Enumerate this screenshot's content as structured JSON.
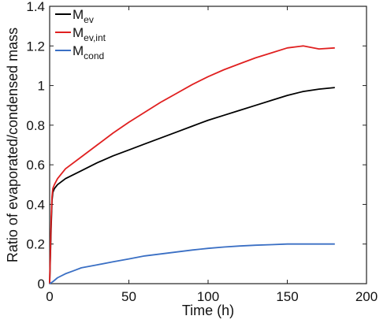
{
  "chart_data": {
    "type": "line",
    "title": "",
    "xlabel": "Time (h)",
    "ylabel": "Ratio of evaporated/condensed mass",
    "xlim": [
      0,
      200
    ],
    "ylim": [
      0,
      1.4
    ],
    "xticks": [
      0,
      50,
      100,
      150,
      200
    ],
    "yticks": [
      0,
      0.2,
      0.4,
      0.6,
      0.8,
      1,
      1.2,
      1.4
    ],
    "xtick_labels": [
      "0",
      "50",
      "100",
      "150",
      "200"
    ],
    "ytick_labels": [
      "0",
      "0.2",
      "0.4",
      "0.6",
      "0.8",
      "1",
      "1.2",
      "1.4"
    ],
    "grid": false,
    "legend_position": "top-left",
    "series": [
      {
        "name": "M_ev",
        "legend_main": "M",
        "legend_sub": "ev",
        "color": "#000000",
        "x": [
          0,
          0.5,
          1,
          1.5,
          2,
          3,
          5,
          10,
          20,
          30,
          40,
          50,
          60,
          70,
          80,
          90,
          100,
          110,
          120,
          130,
          140,
          150,
          160,
          170,
          180
        ],
        "y": [
          0,
          0.15,
          0.3,
          0.42,
          0.46,
          0.48,
          0.5,
          0.53,
          0.57,
          0.61,
          0.645,
          0.675,
          0.705,
          0.735,
          0.765,
          0.795,
          0.825,
          0.85,
          0.875,
          0.9,
          0.925,
          0.95,
          0.97,
          0.982,
          0.99
        ]
      },
      {
        "name": "M_ev,int",
        "legend_main": "M",
        "legend_sub": "ev,int",
        "color": "#e02020",
        "x": [
          0,
          0.5,
          1,
          1.5,
          2,
          3,
          5,
          10,
          20,
          30,
          40,
          50,
          60,
          70,
          80,
          90,
          100,
          110,
          120,
          130,
          140,
          150,
          160,
          170,
          180
        ],
        "y": [
          0,
          0.18,
          0.34,
          0.44,
          0.48,
          0.5,
          0.53,
          0.58,
          0.64,
          0.7,
          0.76,
          0.815,
          0.865,
          0.915,
          0.96,
          1.005,
          1.045,
          1.08,
          1.11,
          1.14,
          1.165,
          1.19,
          1.2,
          1.185,
          1.19
        ]
      },
      {
        "name": "M_cond",
        "legend_main": "M",
        "legend_sub": "cond",
        "color": "#3a6fc4",
        "x": [
          0,
          2,
          5,
          10,
          15,
          20,
          30,
          40,
          50,
          60,
          70,
          80,
          90,
          100,
          110,
          120,
          130,
          140,
          150,
          160,
          170,
          180
        ],
        "y": [
          0,
          0.01,
          0.03,
          0.05,
          0.065,
          0.08,
          0.095,
          0.11,
          0.125,
          0.14,
          0.15,
          0.16,
          0.17,
          0.178,
          0.185,
          0.19,
          0.194,
          0.197,
          0.2,
          0.2,
          0.2,
          0.2
        ]
      }
    ]
  }
}
